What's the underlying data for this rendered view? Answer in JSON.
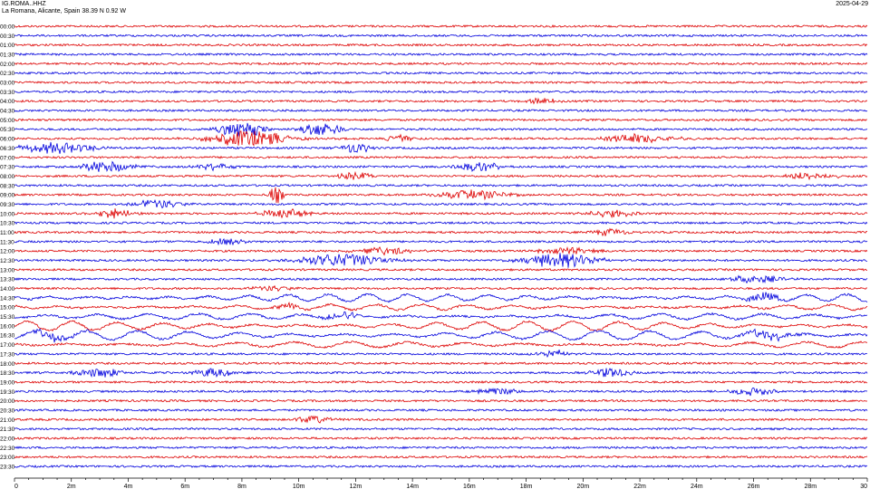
{
  "header": {
    "station": "IG.ROMA..HHZ",
    "location": "La Romana, Alicante, Spain  38.39 N 0.92 W",
    "date": "2025-04-29"
  },
  "chart_data": {
    "type": "line",
    "xlabel": "",
    "ylabel": "",
    "xlim": [
      0,
      30
    ],
    "x_ticks": [
      "0",
      "2m",
      "4m",
      "6m",
      "8m",
      "10m",
      "12m",
      "14m",
      "16m",
      "18m",
      "20m",
      "22m",
      "24m",
      "26m",
      "28m",
      "30"
    ],
    "row_labels": [
      "00:00",
      "00:30",
      "01:00",
      "01:30",
      "02:00",
      "02:30",
      "03:00",
      "03:30",
      "04:00",
      "04:30",
      "05:00",
      "05:30",
      "06:00",
      "06:30",
      "07:00",
      "07:30",
      "08:00",
      "08:30",
      "09:00",
      "09:30",
      "10:00",
      "10:30",
      "11:00",
      "11:30",
      "12:00",
      "12:30",
      "13:00",
      "13:30",
      "14:00",
      "14:30",
      "15:00",
      "15:30",
      "16:00",
      "16:30",
      "17:00",
      "17:30",
      "18:00",
      "18:30",
      "19:00",
      "19:30",
      "20:00",
      "20:30",
      "21:00",
      "21:30",
      "22:00",
      "22:30",
      "23:00",
      "23:30"
    ],
    "series_colors": [
      "#dd0000",
      "#0000dd"
    ],
    "grid": false,
    "legend": "none"
  }
}
